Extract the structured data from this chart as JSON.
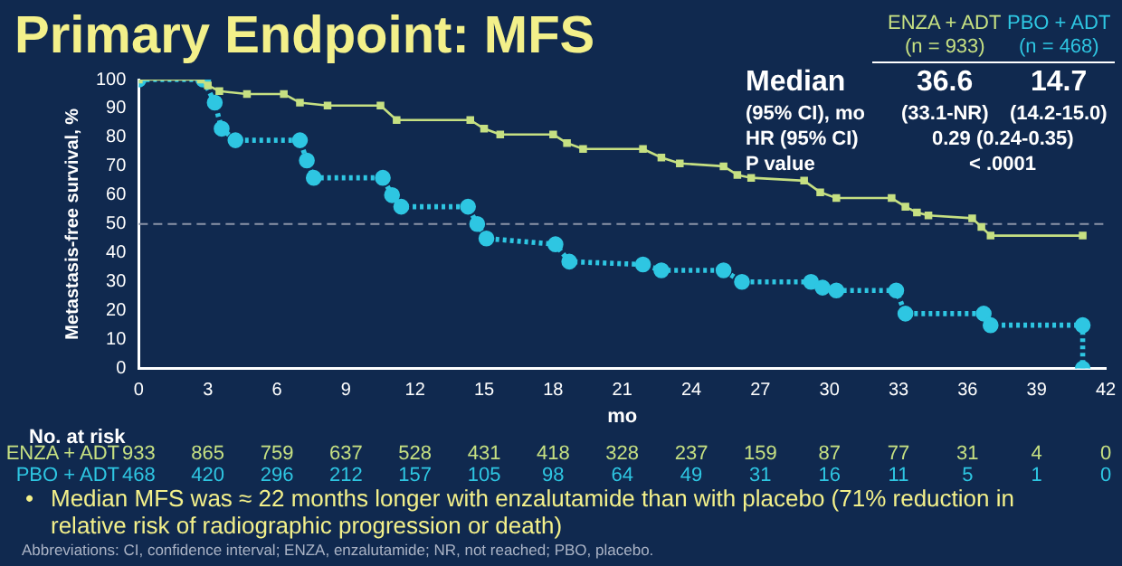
{
  "chart_data": {
    "type": "line",
    "title": "Primary Endpoint: MFS",
    "xlabel": "mo",
    "ylabel": "Metastasis-free survival, %",
    "xlim": [
      0,
      42
    ],
    "xticks": [
      0,
      3,
      6,
      9,
      12,
      15,
      18,
      21,
      24,
      27,
      30,
      33,
      36,
      39,
      42
    ],
    "ylim": [
      0,
      100
    ],
    "yticks": [
      0,
      10,
      20,
      30,
      40,
      50,
      60,
      70,
      80,
      90,
      100
    ],
    "grid": false,
    "legend": "top right",
    "ref_lines": [
      {
        "axis": "y",
        "value": 50,
        "line_style": "dashed",
        "color": "#8a94a8"
      }
    ],
    "series": [
      {
        "name": "ENZA + ADT",
        "color": "#c6e082",
        "marker": "square",
        "line_style": "solid",
        "x": [
          0,
          2.7,
          3.0,
          3.5,
          4.7,
          6.3,
          7.0,
          8.2,
          10.5,
          11.2,
          14.4,
          15.0,
          15.7,
          18.0,
          18.6,
          19.3,
          21.9,
          22.7,
          23.5,
          25.4,
          26.0,
          26.6,
          28.9,
          29.6,
          30.3,
          32.7,
          33.3,
          33.8,
          34.3,
          36.2,
          36.6,
          37.0,
          41.0
        ],
        "values": [
          100,
          100,
          98,
          96,
          95,
          95,
          92,
          91,
          91,
          86,
          86,
          83,
          81,
          81,
          78,
          76,
          76,
          73,
          71,
          70,
          67,
          66,
          65,
          61,
          59,
          59,
          56,
          54,
          53,
          52,
          49,
          46,
          46
        ]
      },
      {
        "name": "PBO + ADT",
        "color": "#2ec6e2",
        "marker": "circle",
        "line_style": "dotted",
        "x": [
          0,
          2.8,
          3.3,
          3.6,
          4.2,
          7.0,
          7.3,
          7.6,
          10.6,
          11.0,
          11.4,
          14.3,
          14.7,
          15.1,
          18.1,
          18.7,
          21.9,
          22.7,
          25.4,
          26.2,
          29.2,
          29.7,
          30.3,
          32.9,
          33.3,
          36.7,
          37.0,
          41.0,
          41.0
        ],
        "values": [
          100,
          100,
          92,
          83,
          79,
          79,
          72,
          66,
          66,
          60,
          56,
          56,
          50,
          45,
          43,
          37,
          36,
          34,
          34,
          30,
          30,
          28,
          27,
          27,
          19,
          19,
          15,
          15,
          0
        ]
      }
    ],
    "annotations": [
      "(n = 933)",
      "(n = 468)",
      "Median",
      "36.6",
      "14.7",
      "(95% CI), mo",
      "(33.1-NR)",
      "(14.2-15.0)",
      "HR (95% CI)",
      "0.29 (0.24-0.35)",
      "P value",
      "< .0001",
      "No. at risk",
      "•",
      "Median MFS was ≈ 22 months longer with enzalutamide than with placebo (71% reduction in relative risk of radiographic progression or death)",
      "Abbreviations: CI, confidence interval; ENZA, enzalutamide; NR, not reached; PBO, placebo.",
      "933",
      "865",
      "759",
      "637",
      "528",
      "431",
      "418",
      "328",
      "237",
      "159",
      "87",
      "77",
      "31",
      "4",
      "0",
      "468",
      "420",
      "296",
      "212",
      "157",
      "105",
      "98",
      "64",
      "49",
      "31",
      "16",
      "11",
      "5",
      "1",
      "0"
    ]
  }
}
